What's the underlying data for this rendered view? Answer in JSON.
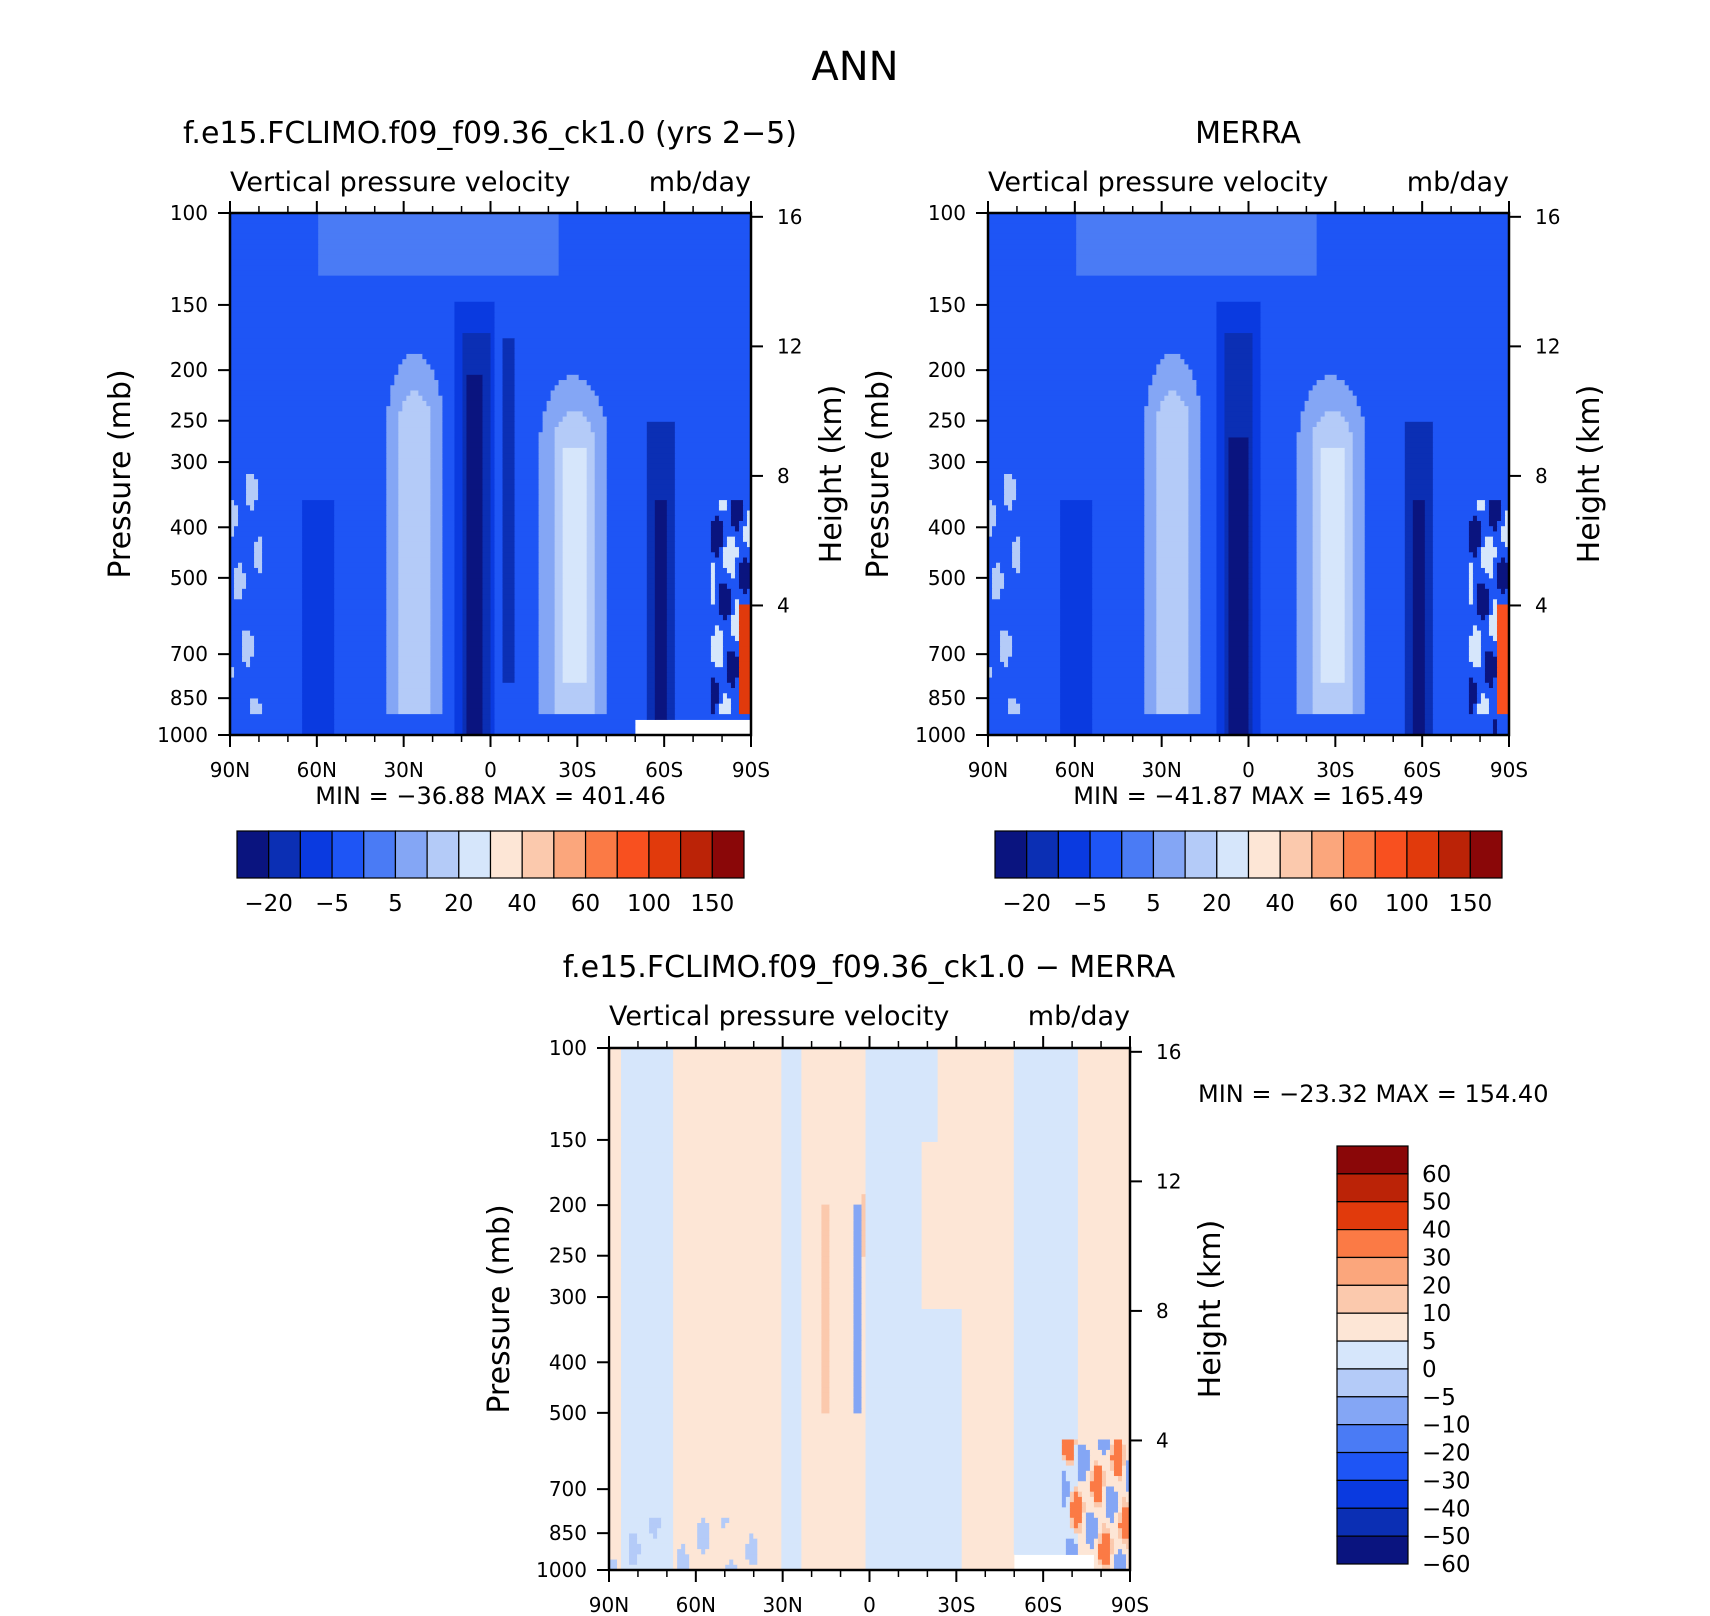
{
  "page_title": "ANN",
  "colors": {
    "model_palette": [
      "#0a147f",
      "#0b2fb4",
      "#0a3ae0",
      "#1e55f5",
      "#4a7bf5",
      "#84a6f5",
      "#b4cbf8",
      "#d6e6fb",
      "#fde6d6",
      "#fbc9ad",
      "#fba67c",
      "#fb7a45",
      "#f8501f",
      "#e13a0c",
      "#bb2307",
      "#8a0708"
    ],
    "diff_palette": [
      "#0a147f",
      "#0b2fb4",
      "#0a3ae0",
      "#1e55f5",
      "#4a7bf5",
      "#84a6f5",
      "#b4cbf8",
      "#d6e6fb",
      "#fde6d6",
      "#fbc9ad",
      "#fba67c",
      "#fb7a45",
      "#e13a0c",
      "#bb2307",
      "#8a0708"
    ]
  },
  "chart_data": [
    {
      "type": "heatmap",
      "title": "f.e15.FCLIMO.f09_f09.36_ck1.0 (yrs 2−5)",
      "subtitle_left": "Vertical pressure velocity",
      "subtitle_right": "mb/day",
      "ylabel": "Pressure (mb)",
      "y2label": "Height (km)",
      "x_ticks": [
        "90N",
        "60N",
        "30N",
        "0",
        "30S",
        "60S",
        "90S"
      ],
      "y_ticks": [
        "100",
        "150",
        "200",
        "250",
        "300",
        "400",
        "500",
        "700",
        "850",
        "1000"
      ],
      "y2_ticks": [
        "16",
        "12",
        "8",
        "4"
      ],
      "stats": "MIN = −36.88   MAX = 401.46",
      "min": -36.88,
      "max": 401.46,
      "colorbar_labels": [
        "−20",
        "−5",
        "5",
        "20",
        "40",
        "60",
        "100",
        "150"
      ],
      "colorbar_orientation": "horizontal"
    },
    {
      "type": "heatmap",
      "title": "MERRA",
      "subtitle_left": "Vertical pressure velocity",
      "subtitle_right": "mb/day",
      "ylabel": "Pressure (mb)",
      "y2label": "Height (km)",
      "x_ticks": [
        "90N",
        "60N",
        "30N",
        "0",
        "30S",
        "60S",
        "90S"
      ],
      "y_ticks": [
        "100",
        "150",
        "200",
        "250",
        "300",
        "400",
        "500",
        "700",
        "850",
        "1000"
      ],
      "y2_ticks": [
        "16",
        "12",
        "8",
        "4"
      ],
      "stats": "MIN = −41.87   MAX = 165.49",
      "min": -41.87,
      "max": 165.49,
      "colorbar_labels": [
        "−20",
        "−5",
        "5",
        "20",
        "40",
        "60",
        "100",
        "150"
      ],
      "colorbar_orientation": "horizontal"
    },
    {
      "type": "heatmap",
      "title": "f.e15.FCLIMO.f09_f09.36_ck1.0 − MERRA",
      "subtitle_left": "Vertical pressure velocity",
      "subtitle_right": "mb/day",
      "ylabel": "Pressure (mb)",
      "y2label": "Height (km)",
      "x_ticks": [
        "90N",
        "60N",
        "30N",
        "0",
        "30S",
        "60S",
        "90S"
      ],
      "y_ticks": [
        "100",
        "150",
        "200",
        "250",
        "300",
        "400",
        "500",
        "700",
        "850",
        "1000"
      ],
      "y2_ticks": [
        "16",
        "12",
        "8",
        "4"
      ],
      "stats": "MIN = −23.32   MAX = 154.40",
      "min": -23.32,
      "max": 154.4,
      "colorbar_labels": [
        "60",
        "50",
        "40",
        "30",
        "20",
        "10",
        "5",
        "0",
        "−5",
        "−10",
        "−20",
        "−30",
        "−40",
        "−50",
        "−60"
      ],
      "colorbar_orientation": "vertical"
    }
  ]
}
